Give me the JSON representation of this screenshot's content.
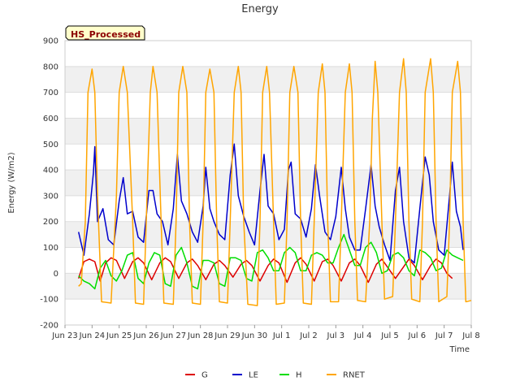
{
  "chart_data": {
    "type": "line",
    "title": "Energy",
    "badge": "HS_Processed",
    "xlabel": "Time",
    "ylabel": "Energy (W/m2)",
    "xlim": [
      0,
      15
    ],
    "ylim": [
      -200,
      900
    ],
    "x_ticks": [
      {
        "v": 0,
        "label": "Jun 23"
      },
      {
        "v": 1,
        "label": "Jun 24"
      },
      {
        "v": 2,
        "label": "Jun 25"
      },
      {
        "v": 3,
        "label": "Jun 26"
      },
      {
        "v": 4,
        "label": "Jun 27"
      },
      {
        "v": 5,
        "label": "Jun 28"
      },
      {
        "v": 6,
        "label": "Jun 29"
      },
      {
        "v": 7,
        "label": "Jun 30"
      },
      {
        "v": 8,
        "label": "Jul 1"
      },
      {
        "v": 9,
        "label": "Jul 2"
      },
      {
        "v": 10,
        "label": "Jul 3"
      },
      {
        "v": 11,
        "label": "Jul 4"
      },
      {
        "v": 12,
        "label": "Jul 5"
      },
      {
        "v": 13,
        "label": "Jul 6"
      },
      {
        "v": 14,
        "label": "Jul 7"
      },
      {
        "v": 15,
        "label": "Jul 8"
      }
    ],
    "y_ticks": [
      -200,
      -100,
      0,
      100,
      200,
      300,
      400,
      500,
      600,
      700,
      800,
      900
    ],
    "grid": true,
    "legend_position": "bottom",
    "series": [
      {
        "name": "G",
        "color": "#dd0000",
        "points": [
          [
            0.5,
            -20
          ],
          [
            0.7,
            45
          ],
          [
            0.9,
            55
          ],
          [
            1.1,
            45
          ],
          [
            1.3,
            -30
          ],
          [
            1.5,
            40
          ],
          [
            1.7,
            60
          ],
          [
            1.9,
            50
          ],
          [
            2.2,
            -20
          ],
          [
            2.5,
            45
          ],
          [
            2.7,
            60
          ],
          [
            2.9,
            40
          ],
          [
            3.2,
            -25
          ],
          [
            3.5,
            40
          ],
          [
            3.7,
            60
          ],
          [
            3.9,
            45
          ],
          [
            4.2,
            -20
          ],
          [
            4.5,
            40
          ],
          [
            4.7,
            55
          ],
          [
            4.9,
            30
          ],
          [
            5.2,
            -25
          ],
          [
            5.5,
            35
          ],
          [
            5.7,
            50
          ],
          [
            5.9,
            30
          ],
          [
            6.2,
            -15
          ],
          [
            6.5,
            35
          ],
          [
            6.7,
            50
          ],
          [
            6.9,
            30
          ],
          [
            7.2,
            -30
          ],
          [
            7.5,
            30
          ],
          [
            7.7,
            55
          ],
          [
            7.9,
            40
          ],
          [
            8.2,
            -35
          ],
          [
            8.5,
            40
          ],
          [
            8.7,
            60
          ],
          [
            8.9,
            35
          ],
          [
            9.2,
            -30
          ],
          [
            9.5,
            45
          ],
          [
            9.7,
            55
          ],
          [
            9.9,
            30
          ],
          [
            10.2,
            -30
          ],
          [
            10.5,
            40
          ],
          [
            10.7,
            55
          ],
          [
            10.9,
            30
          ],
          [
            11.2,
            -35
          ],
          [
            11.5,
            35
          ],
          [
            11.7,
            55
          ],
          [
            11.9,
            25
          ],
          [
            12.2,
            -20
          ],
          [
            12.5,
            25
          ],
          [
            12.7,
            55
          ],
          [
            12.9,
            30
          ],
          [
            13.2,
            -25
          ],
          [
            13.5,
            30
          ],
          [
            13.7,
            55
          ],
          [
            13.9,
            40
          ],
          [
            14.1,
            0
          ],
          [
            14.3,
            -20
          ]
        ]
      },
      {
        "name": "LE",
        "color": "#0000cc",
        "points": [
          [
            0.5,
            160
          ],
          [
            0.7,
            70
          ],
          [
            0.9,
            230
          ],
          [
            1.05,
            390
          ],
          [
            1.1,
            490
          ],
          [
            1.2,
            200
          ],
          [
            1.4,
            250
          ],
          [
            1.6,
            130
          ],
          [
            1.8,
            110
          ],
          [
            2.0,
            280
          ],
          [
            2.15,
            370
          ],
          [
            2.3,
            230
          ],
          [
            2.5,
            240
          ],
          [
            2.7,
            140
          ],
          [
            2.9,
            120
          ],
          [
            3.1,
            320
          ],
          [
            3.25,
            320
          ],
          [
            3.4,
            230
          ],
          [
            3.6,
            200
          ],
          [
            3.8,
            110
          ],
          [
            4.0,
            250
          ],
          [
            4.15,
            460
          ],
          [
            4.3,
            280
          ],
          [
            4.5,
            230
          ],
          [
            4.7,
            160
          ],
          [
            4.9,
            120
          ],
          [
            5.1,
            260
          ],
          [
            5.2,
            410
          ],
          [
            5.35,
            250
          ],
          [
            5.5,
            200
          ],
          [
            5.7,
            150
          ],
          [
            5.9,
            130
          ],
          [
            6.1,
            380
          ],
          [
            6.25,
            500
          ],
          [
            6.4,
            300
          ],
          [
            6.6,
            220
          ],
          [
            6.8,
            160
          ],
          [
            7.0,
            110
          ],
          [
            7.2,
            320
          ],
          [
            7.35,
            460
          ],
          [
            7.5,
            260
          ],
          [
            7.7,
            230
          ],
          [
            7.9,
            130
          ],
          [
            8.1,
            170
          ],
          [
            8.25,
            400
          ],
          [
            8.35,
            430
          ],
          [
            8.5,
            230
          ],
          [
            8.7,
            210
          ],
          [
            8.9,
            140
          ],
          [
            9.1,
            250
          ],
          [
            9.25,
            420
          ],
          [
            9.4,
            300
          ],
          [
            9.6,
            160
          ],
          [
            9.8,
            130
          ],
          [
            10.0,
            220
          ],
          [
            10.2,
            410
          ],
          [
            10.35,
            250
          ],
          [
            10.5,
            140
          ],
          [
            10.7,
            90
          ],
          [
            10.9,
            90
          ],
          [
            11.1,
            250
          ],
          [
            11.3,
            420
          ],
          [
            11.45,
            260
          ],
          [
            11.6,
            180
          ],
          [
            11.8,
            110
          ],
          [
            12.0,
            50
          ],
          [
            12.2,
            320
          ],
          [
            12.35,
            410
          ],
          [
            12.5,
            200
          ],
          [
            12.7,
            60
          ],
          [
            12.9,
            40
          ],
          [
            13.1,
            250
          ],
          [
            13.3,
            450
          ],
          [
            13.45,
            380
          ],
          [
            13.6,
            200
          ],
          [
            13.8,
            90
          ],
          [
            14.0,
            70
          ],
          [
            14.2,
            300
          ],
          [
            14.3,
            430
          ],
          [
            14.45,
            240
          ],
          [
            14.6,
            180
          ],
          [
            14.7,
            90
          ]
        ]
      },
      {
        "name": "H",
        "color": "#00dd00",
        "points": [
          [
            0.5,
            -10
          ],
          [
            0.7,
            -30
          ],
          [
            0.9,
            -40
          ],
          [
            1.1,
            -60
          ],
          [
            1.3,
            20
          ],
          [
            1.5,
            50
          ],
          [
            1.7,
            -10
          ],
          [
            1.9,
            -30
          ],
          [
            2.1,
            10
          ],
          [
            2.3,
            70
          ],
          [
            2.5,
            80
          ],
          [
            2.7,
            -20
          ],
          [
            2.9,
            -40
          ],
          [
            3.1,
            40
          ],
          [
            3.3,
            80
          ],
          [
            3.5,
            70
          ],
          [
            3.7,
            -40
          ],
          [
            3.9,
            -50
          ],
          [
            4.1,
            70
          ],
          [
            4.3,
            100
          ],
          [
            4.5,
            40
          ],
          [
            4.7,
            -50
          ],
          [
            4.9,
            -60
          ],
          [
            5.1,
            50
          ],
          [
            5.3,
            50
          ],
          [
            5.5,
            40
          ],
          [
            5.7,
            -40
          ],
          [
            5.9,
            -50
          ],
          [
            6.1,
            60
          ],
          [
            6.3,
            60
          ],
          [
            6.5,
            50
          ],
          [
            6.7,
            -20
          ],
          [
            6.9,
            -30
          ],
          [
            7.1,
            80
          ],
          [
            7.3,
            90
          ],
          [
            7.5,
            60
          ],
          [
            7.7,
            10
          ],
          [
            7.9,
            10
          ],
          [
            8.1,
            80
          ],
          [
            8.3,
            100
          ],
          [
            8.5,
            80
          ],
          [
            8.7,
            10
          ],
          [
            8.9,
            10
          ],
          [
            9.1,
            70
          ],
          [
            9.3,
            80
          ],
          [
            9.5,
            70
          ],
          [
            9.7,
            40
          ],
          [
            9.9,
            40
          ],
          [
            10.1,
            100
          ],
          [
            10.3,
            150
          ],
          [
            10.5,
            90
          ],
          [
            10.7,
            30
          ],
          [
            10.9,
            30
          ],
          [
            11.1,
            100
          ],
          [
            11.3,
            120
          ],
          [
            11.5,
            80
          ],
          [
            11.7,
            0
          ],
          [
            11.9,
            10
          ],
          [
            12.1,
            70
          ],
          [
            12.3,
            80
          ],
          [
            12.5,
            60
          ],
          [
            12.7,
            10
          ],
          [
            12.9,
            -10
          ],
          [
            13.1,
            90
          ],
          [
            13.3,
            80
          ],
          [
            13.5,
            60
          ],
          [
            13.7,
            10
          ],
          [
            13.9,
            20
          ],
          [
            14.1,
            90
          ],
          [
            14.3,
            70
          ],
          [
            14.5,
            60
          ],
          [
            14.7,
            50
          ]
        ]
      },
      {
        "name": "RNET",
        "color": "#ffa500",
        "points": [
          [
            0.5,
            -50
          ],
          [
            0.6,
            -40
          ],
          [
            0.75,
            200
          ],
          [
            0.85,
            700
          ],
          [
            1.0,
            790
          ],
          [
            1.1,
            700
          ],
          [
            1.2,
            300
          ],
          [
            1.35,
            -110
          ],
          [
            1.7,
            -115
          ],
          [
            1.9,
            300
          ],
          [
            2.0,
            700
          ],
          [
            2.15,
            800
          ],
          [
            2.3,
            700
          ],
          [
            2.5,
            200
          ],
          [
            2.6,
            -115
          ],
          [
            2.9,
            -120
          ],
          [
            3.0,
            200
          ],
          [
            3.15,
            700
          ],
          [
            3.25,
            800
          ],
          [
            3.4,
            700
          ],
          [
            3.55,
            200
          ],
          [
            3.65,
            -115
          ],
          [
            4.0,
            -120
          ],
          [
            4.1,
            200
          ],
          [
            4.2,
            700
          ],
          [
            4.35,
            800
          ],
          [
            4.5,
            700
          ],
          [
            4.6,
            200
          ],
          [
            4.7,
            -115
          ],
          [
            5.0,
            -120
          ],
          [
            5.1,
            200
          ],
          [
            5.2,
            700
          ],
          [
            5.35,
            790
          ],
          [
            5.5,
            700
          ],
          [
            5.6,
            200
          ],
          [
            5.7,
            -110
          ],
          [
            6.0,
            -115
          ],
          [
            6.1,
            200
          ],
          [
            6.25,
            700
          ],
          [
            6.4,
            800
          ],
          [
            6.5,
            700
          ],
          [
            6.6,
            200
          ],
          [
            6.75,
            -120
          ],
          [
            7.1,
            -125
          ],
          [
            7.2,
            200
          ],
          [
            7.3,
            700
          ],
          [
            7.45,
            800
          ],
          [
            7.55,
            700
          ],
          [
            7.7,
            200
          ],
          [
            7.8,
            -120
          ],
          [
            8.1,
            -115
          ],
          [
            8.2,
            200
          ],
          [
            8.3,
            700
          ],
          [
            8.45,
            800
          ],
          [
            8.6,
            700
          ],
          [
            8.7,
            200
          ],
          [
            8.8,
            -115
          ],
          [
            9.1,
            -120
          ],
          [
            9.2,
            200
          ],
          [
            9.35,
            700
          ],
          [
            9.5,
            810
          ],
          [
            9.6,
            700
          ],
          [
            9.7,
            200
          ],
          [
            9.8,
            -110
          ],
          [
            10.1,
            -110
          ],
          [
            10.2,
            200
          ],
          [
            10.35,
            700
          ],
          [
            10.5,
            810
          ],
          [
            10.6,
            700
          ],
          [
            10.7,
            200
          ],
          [
            10.8,
            -105
          ],
          [
            11.1,
            -110
          ],
          [
            11.25,
            200
          ],
          [
            11.35,
            600
          ],
          [
            11.45,
            820
          ],
          [
            11.55,
            700
          ],
          [
            11.7,
            200
          ],
          [
            11.8,
            -100
          ],
          [
            12.1,
            -90
          ],
          [
            12.2,
            200
          ],
          [
            12.35,
            700
          ],
          [
            12.5,
            830
          ],
          [
            12.6,
            700
          ],
          [
            12.7,
            200
          ],
          [
            12.8,
            -100
          ],
          [
            13.1,
            -110
          ],
          [
            13.2,
            200
          ],
          [
            13.3,
            700
          ],
          [
            13.5,
            830
          ],
          [
            13.6,
            700
          ],
          [
            13.7,
            200
          ],
          [
            13.8,
            -110
          ],
          [
            14.1,
            -90
          ],
          [
            14.2,
            200
          ],
          [
            14.3,
            700
          ],
          [
            14.5,
            820
          ],
          [
            14.6,
            700
          ],
          [
            14.7,
            200
          ],
          [
            14.8,
            -110
          ],
          [
            15.0,
            -105
          ]
        ]
      }
    ]
  }
}
